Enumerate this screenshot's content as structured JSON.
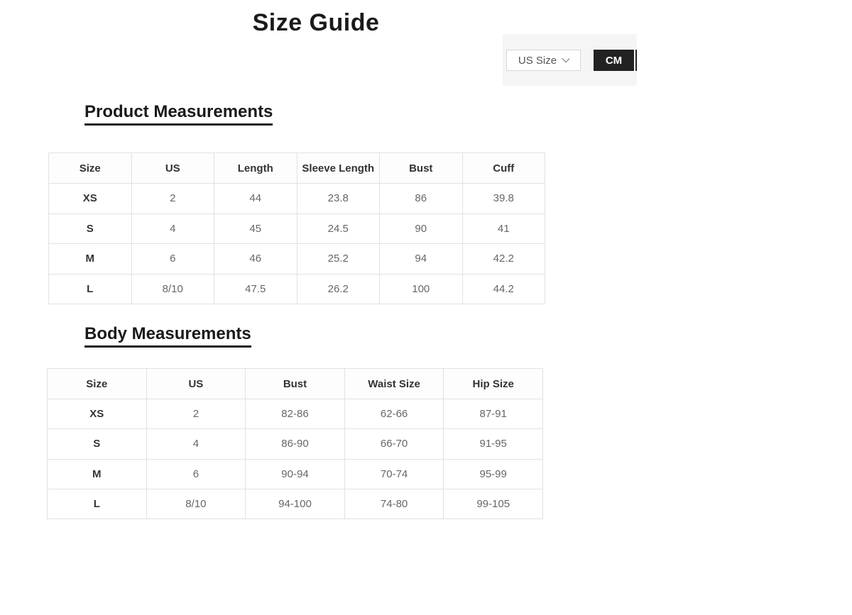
{
  "page": {
    "title": "Size Guide"
  },
  "controls": {
    "size_selector": {
      "label": "US Size",
      "chevron_icon": "chevron-down"
    },
    "unit_toggle": {
      "selected_unit": "CM"
    }
  },
  "product_measurements": {
    "heading": "Product Measurements",
    "columns": [
      "Size",
      "US",
      "Length",
      "Sleeve Length",
      "Bust",
      "Cuff"
    ],
    "rows": [
      [
        "XS",
        "2",
        "44",
        "23.8",
        "86",
        "39.8"
      ],
      [
        "S",
        "4",
        "45",
        "24.5",
        "90",
        "41"
      ],
      [
        "M",
        "6",
        "46",
        "25.2",
        "94",
        "42.2"
      ],
      [
        "L",
        "8/10",
        "47.5",
        "26.2",
        "100",
        "44.2"
      ]
    ]
  },
  "body_measurements": {
    "heading": "Body Measurements",
    "columns": [
      "Size",
      "US",
      "Bust",
      "Waist Size",
      "Hip Size"
    ],
    "rows": [
      [
        "XS",
        "2",
        "82-86",
        "62-66",
        "87-91"
      ],
      [
        "S",
        "4",
        "86-90",
        "66-70",
        "91-95"
      ],
      [
        "M",
        "6",
        "90-94",
        "70-74",
        "95-99"
      ],
      [
        "L",
        "8/10",
        "94-100",
        "74-80",
        "99-105"
      ]
    ]
  },
  "colors": {
    "heading_text": "#1a1a1a",
    "table_header_text": "#333333",
    "table_data_text": "#666666",
    "table_border": "#e2e2e2",
    "panel_background": "#f5f5f5",
    "unit_button_background": "#222222",
    "unit_button_text": "#ffffff",
    "dropdown_border": "#d8d8d8",
    "dropdown_text": "#555555"
  }
}
